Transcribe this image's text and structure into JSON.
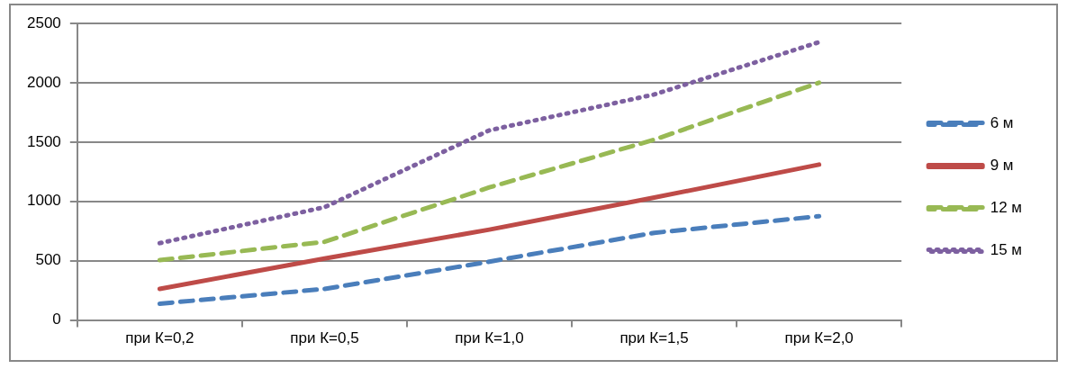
{
  "chart_data": {
    "type": "line",
    "categories": [
      "при К=0,2",
      "при К=0,5",
      "при К=1,0",
      "при К=1,5",
      "при К=2,0"
    ],
    "series": [
      {
        "name": "6 м",
        "color": "#4a7ebb",
        "line_style": "dashed",
        "values": [
          138,
          262,
          492,
          735,
          875
        ]
      },
      {
        "name": "9 м",
        "color": "#be4b48",
        "line_style": "solid",
        "values": [
          262,
          519,
          762,
          1032,
          1310
        ]
      },
      {
        "name": "12 м",
        "color": "#98b954",
        "line_style": "dashed",
        "values": [
          505,
          659,
          1118,
          1520,
          2000
        ]
      },
      {
        "name": "15 м",
        "color": "#7d60a0",
        "line_style": "dotted",
        "values": [
          648,
          951,
          1599,
          1901,
          2342
        ]
      }
    ],
    "ylim": [
      0,
      2500
    ],
    "yticks": [
      0,
      500,
      1000,
      1500,
      2000,
      2500
    ],
    "grid": "y",
    "legend": "right",
    "marker": "none"
  }
}
